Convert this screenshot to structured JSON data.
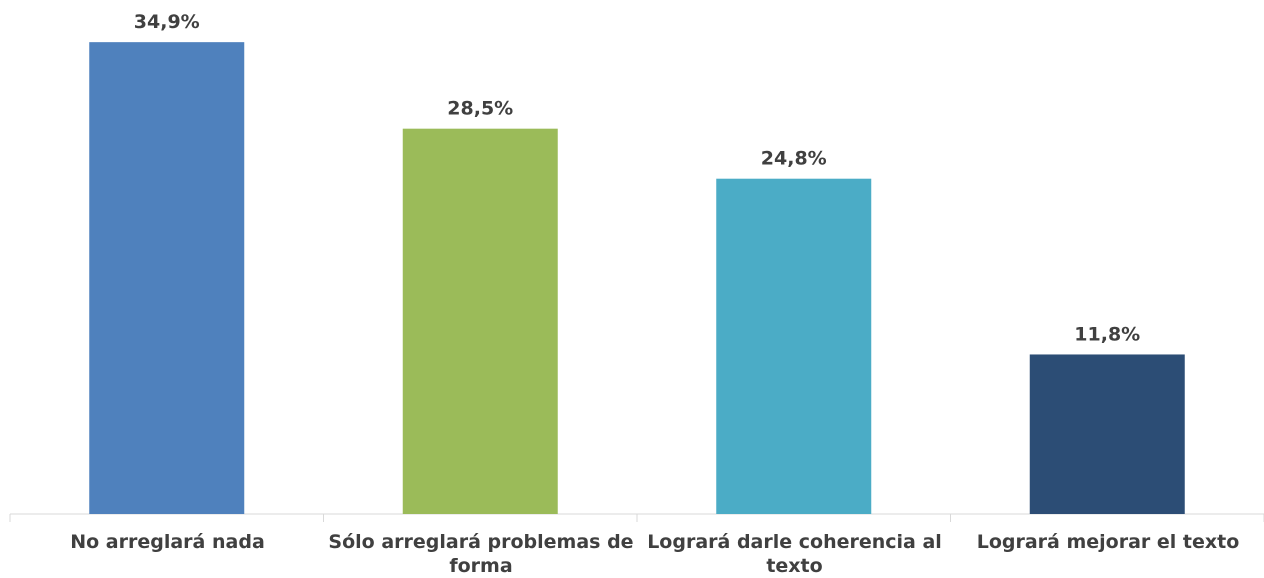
{
  "chart_data": {
    "type": "bar",
    "categories": [
      "No arreglará nada",
      "Sólo arreglará problemas de forma",
      "Logrará darle coherencia al texto",
      "Logrará mejorar el texto"
    ],
    "values": [
      34.9,
      28.5,
      24.8,
      11.8
    ],
    "value_labels": [
      "34,9%",
      "28,5%",
      "24,8%",
      "11,8%"
    ],
    "colors": [
      "#4f81bd",
      "#9bbb59",
      "#4bacc6",
      "#2c4d75"
    ]
  }
}
